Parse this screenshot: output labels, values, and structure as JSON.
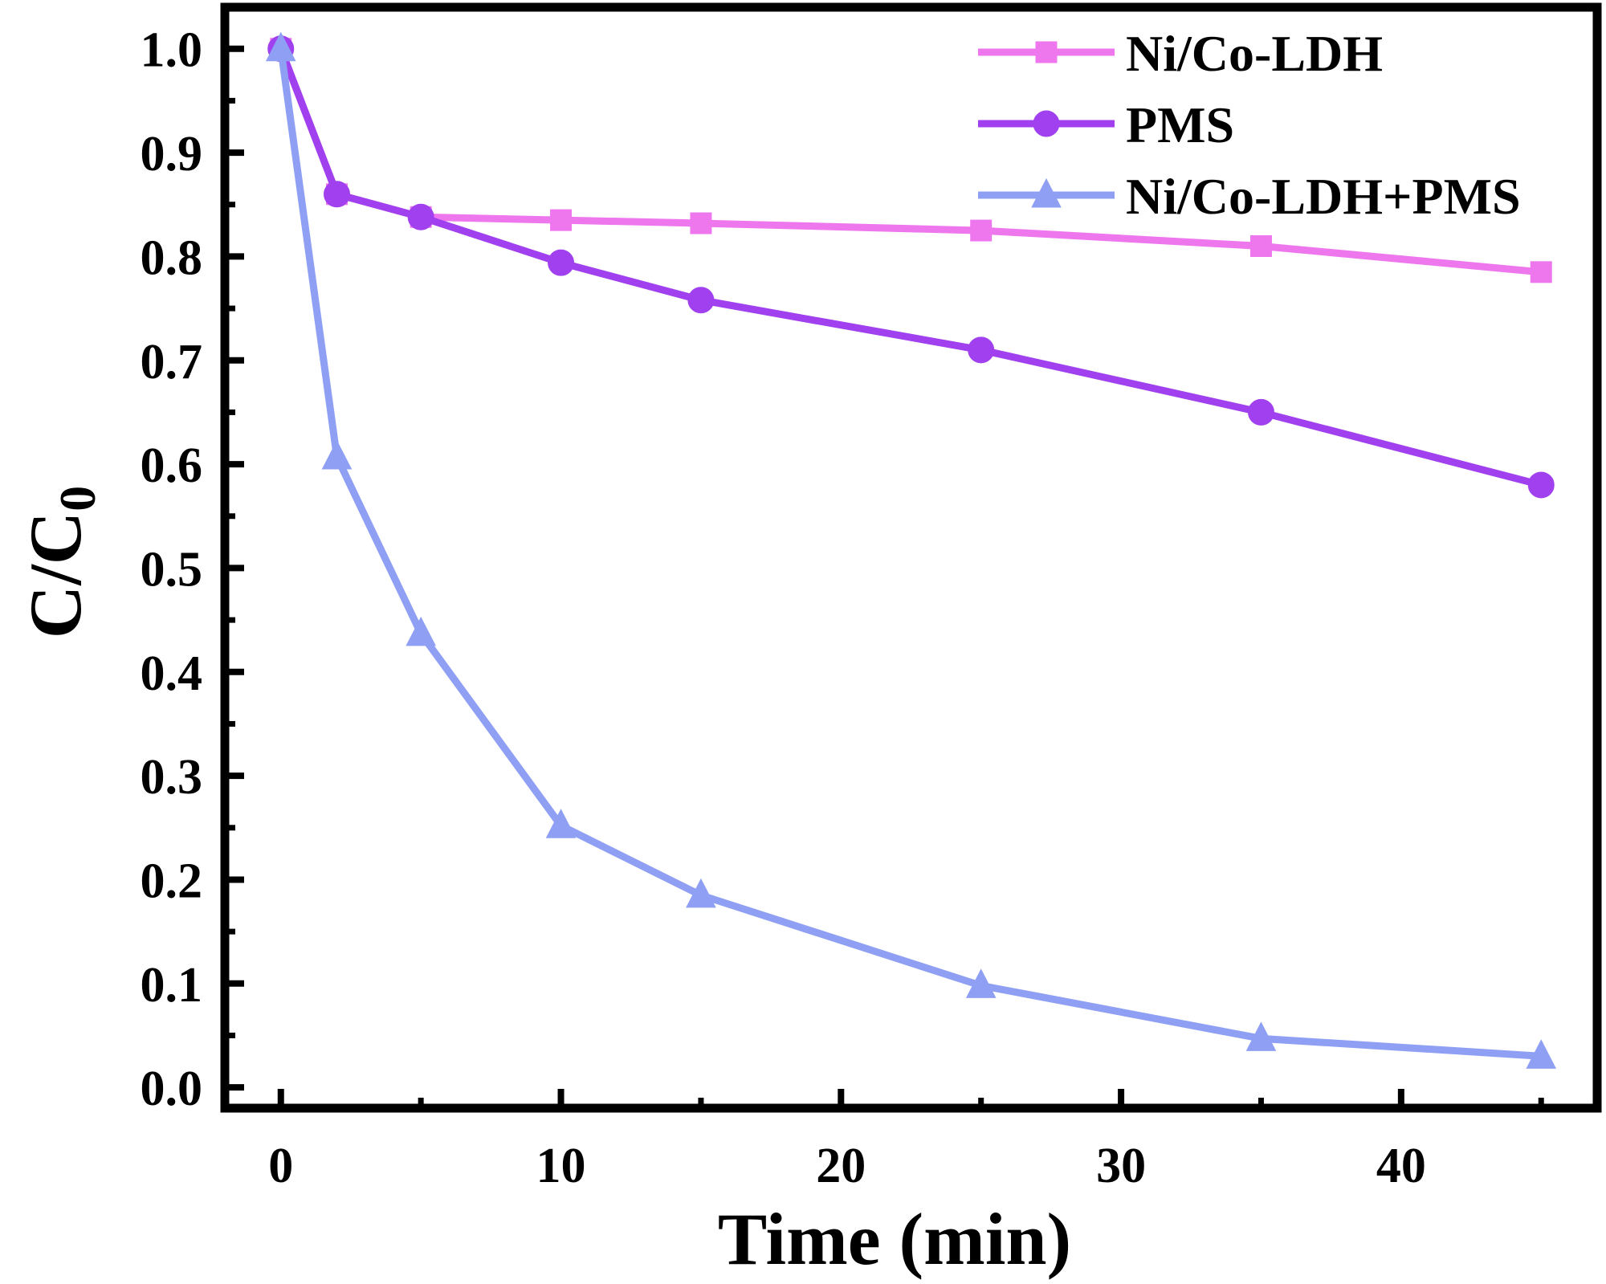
{
  "chart_data": {
    "type": "line",
    "title": "",
    "xlabel": "Time (min)",
    "ylabel_main": "C/C",
    "ylabel_sub": "0",
    "xlim": [
      -2,
      47
    ],
    "ylim": [
      -0.02,
      1.04
    ],
    "x_ticks": [
      0,
      10,
      20,
      30,
      40
    ],
    "x_tick_labels": [
      "0",
      "10",
      "20",
      "30",
      "40"
    ],
    "y_ticks": [
      0.0,
      0.1,
      0.2,
      0.3,
      0.4,
      0.5,
      0.6,
      0.7,
      0.8,
      0.9,
      1.0
    ],
    "y_tick_labels": [
      "0.0",
      "0.1",
      "0.2",
      "0.3",
      "0.4",
      "0.5",
      "0.6",
      "0.7",
      "0.8",
      "0.9",
      "1.0"
    ],
    "grid": false,
    "legend_position": "top-right",
    "x": [
      0,
      2,
      5,
      10,
      15,
      25,
      35,
      45
    ],
    "series": [
      {
        "name": "Ni/Co-LDH",
        "marker": "square",
        "color": "#ee77ee",
        "values": [
          1.0,
          0.86,
          0.838,
          0.835,
          0.832,
          0.825,
          0.81,
          0.785
        ]
      },
      {
        "name": "PMS",
        "marker": "circle",
        "color": "#a040ee",
        "values": [
          1.0,
          0.86,
          0.838,
          0.794,
          0.758,
          0.71,
          0.65,
          0.58
        ]
      },
      {
        "name": "Ni/Co-LDH+PMS",
        "marker": "triangle",
        "color": "#8fa0f4",
        "values": [
          1.0,
          0.607,
          0.437,
          0.252,
          0.185,
          0.098,
          0.047,
          0.03
        ]
      }
    ]
  }
}
